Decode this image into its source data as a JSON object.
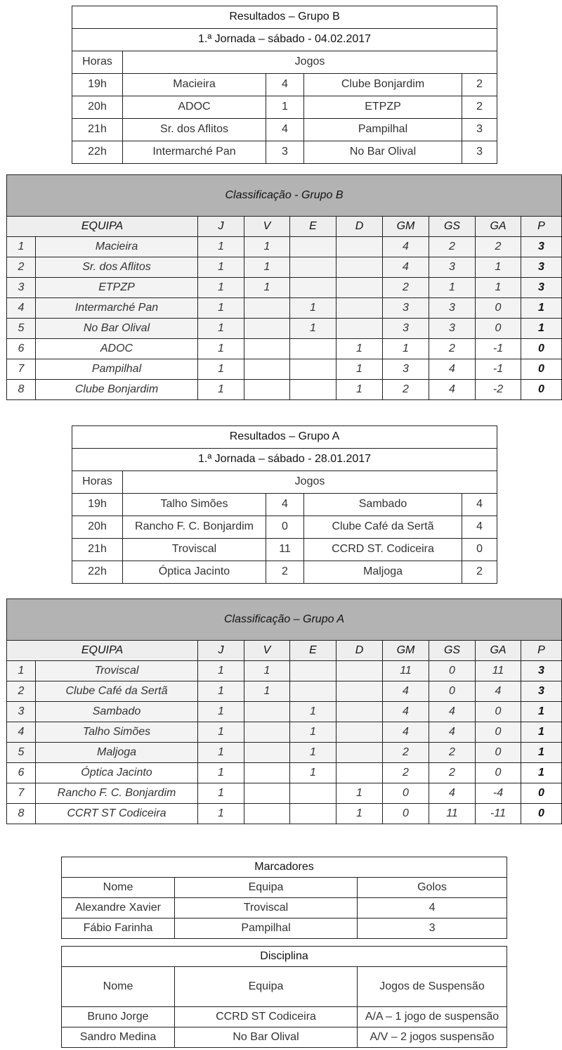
{
  "results_b": {
    "title": "Resultados – Grupo B",
    "subtitle": "1.ª Jornada – sábado - 04.02.2017",
    "col_hours": "Horas",
    "col_games": "Jogos",
    "games": [
      {
        "time": "19h",
        "home": "Macieira",
        "home_score": "4",
        "away": "Clube Bonjardim",
        "away_score": "2"
      },
      {
        "time": "20h",
        "home": "ADOC",
        "home_score": "1",
        "away": "ETPZP",
        "away_score": "2"
      },
      {
        "time": "21h",
        "home": "Sr. dos Aflitos",
        "home_score": "4",
        "away": "Pampilhal",
        "away_score": "3"
      },
      {
        "time": "22h",
        "home": "Intermarché Pan",
        "home_score": "3",
        "away": "No Bar Olival",
        "away_score": "3"
      }
    ]
  },
  "standings_b": {
    "title": "Classificação - Grupo B",
    "headers": [
      "EQUIPA",
      "J",
      "V",
      "E",
      "D",
      "GM",
      "GS",
      "GA",
      "P"
    ],
    "rows": [
      [
        "1",
        "Macieira",
        "1",
        "1",
        "",
        "",
        "4",
        "2",
        "2",
        "3"
      ],
      [
        "2",
        "Sr. dos Aflitos",
        "1",
        "1",
        "",
        "",
        "4",
        "3",
        "1",
        "3"
      ],
      [
        "3",
        "ETPZP",
        "1",
        "1",
        "",
        "",
        "2",
        "1",
        "1",
        "3"
      ],
      [
        "4",
        "Intermarché Pan",
        "1",
        "",
        "1",
        "",
        "3",
        "3",
        "0",
        "1"
      ],
      [
        "5",
        "No Bar Olival",
        "1",
        "",
        "1",
        "",
        "3",
        "3",
        "0",
        "1"
      ],
      [
        "6",
        "ADOC",
        "1",
        "",
        "",
        "1",
        "1",
        "2",
        "-1",
        "0"
      ],
      [
        "7",
        "Pampilhal",
        "1",
        "",
        "",
        "1",
        "3",
        "4",
        "-1",
        "0"
      ],
      [
        "8",
        "Clube Bonjardim",
        "1",
        "",
        "",
        "1",
        "2",
        "4",
        "-2",
        "0"
      ]
    ]
  },
  "results_a": {
    "title": "Resultados – Grupo A",
    "subtitle": "1.ª Jornada – sábado - 28.01.2017",
    "col_hours": "Horas",
    "col_games": "Jogos",
    "games": [
      {
        "time": "19h",
        "home": "Talho Simões",
        "home_score": "4",
        "away": "Sambado",
        "away_score": "4"
      },
      {
        "time": "20h",
        "home": "Rancho F. C. Bonjardim",
        "home_score": "0",
        "away": "Clube Café da Sertã",
        "away_score": "4"
      },
      {
        "time": "21h",
        "home": "Troviscal",
        "home_score": "11",
        "away": "CCRD ST. Codiceira",
        "away_score": "0"
      },
      {
        "time": "22h",
        "home": "Óptica Jacinto",
        "home_score": "2",
        "away": "Maljoga",
        "away_score": "2"
      }
    ]
  },
  "standings_a": {
    "title": "Classificação – Grupo A",
    "headers": [
      "EQUIPA",
      "J",
      "V",
      "E",
      "D",
      "GM",
      "GS",
      "GA",
      "P"
    ],
    "rows": [
      [
        "1",
        "Troviscal",
        "1",
        "1",
        "",
        "",
        "11",
        "0",
        "11",
        "3"
      ],
      [
        "2",
        "Clube Café da Sertã",
        "1",
        "1",
        "",
        "",
        "4",
        "0",
        "4",
        "3"
      ],
      [
        "3",
        "Sambado",
        "1",
        "",
        "1",
        "",
        "4",
        "4",
        "0",
        "1"
      ],
      [
        "4",
        "Talho Simões",
        "1",
        "",
        "1",
        "",
        "4",
        "4",
        "0",
        "1"
      ],
      [
        "5",
        "Maljoga",
        "1",
        "",
        "1",
        "",
        "2",
        "2",
        "0",
        "1"
      ],
      [
        "6",
        "Óptica Jacinto",
        "1",
        "",
        "1",
        "",
        "2",
        "2",
        "0",
        "1"
      ],
      [
        "7",
        "Rancho F. C. Bonjardim",
        "1",
        "",
        "",
        "1",
        "0",
        "4",
        "-4",
        "0"
      ],
      [
        "8",
        "CCRT ST Codiceira",
        "1",
        "",
        "",
        "1",
        "0",
        "11",
        "-11",
        "0"
      ]
    ]
  },
  "scorers": {
    "title": "Marcadores",
    "headers": [
      "Nome",
      "Equipa",
      "Golos"
    ],
    "rows": [
      [
        "Alexandre Xavier",
        "Troviscal",
        "4"
      ],
      [
        "Fábio Farinha",
        "Pampilhal",
        "3"
      ]
    ]
  },
  "discipline": {
    "title": "Disciplina",
    "headers": [
      "Nome",
      "Equipa",
      "Jogos de Suspensão"
    ],
    "rows": [
      [
        "Bruno Jorge",
        "CCRD ST Codiceira",
        "A/A – 1 jogo de suspensão"
      ],
      [
        "Sandro Medina",
        "No Bar Olival",
        "A/V – 2 jogos suspensão"
      ]
    ]
  }
}
